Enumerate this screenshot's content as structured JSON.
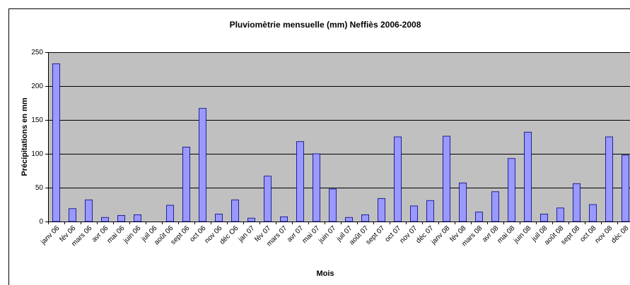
{
  "chart_data": {
    "type": "bar",
    "title": "Pluviomètrie mensuelle (mm) Neffiès 2006-2008",
    "x_label": "Mois",
    "y_label": "Précipitations en mm",
    "categories": [
      "janv 06",
      "fév 06",
      "mars 06",
      "avr 06",
      "mai 06",
      "juin 06",
      "juil 06",
      "août 06",
      "sept 06",
      "oct 06",
      "nov 06",
      "déc O6",
      "jan 07",
      "fév 07",
      "mars 07",
      "avr 07",
      "mai 07",
      "juin 07",
      "juil 07",
      "août 07",
      "sept 07",
      "oct 07",
      "nov 07",
      "déc 07",
      "janv 08",
      "fév 08",
      "mars 08",
      "avr 08",
      "mai 08",
      "juin 08",
      "juil 08",
      "août 08",
      "sept 08",
      "oct 08",
      "nov 08",
      "déc 08"
    ],
    "values": [
      233,
      19,
      32,
      6,
      9,
      10,
      0,
      24,
      110,
      167,
      11,
      32,
      5,
      67,
      7,
      118,
      100,
      48,
      6,
      10,
      34,
      125,
      23,
      31,
      126,
      57,
      14,
      44,
      93,
      132,
      11,
      20,
      56,
      25,
      125,
      98
    ],
    "color": "#9999ff",
    "ylim": [
      0,
      250
    ],
    "yticks": [
      0,
      50,
      100,
      150,
      200,
      250
    ],
    "grid": true
  }
}
